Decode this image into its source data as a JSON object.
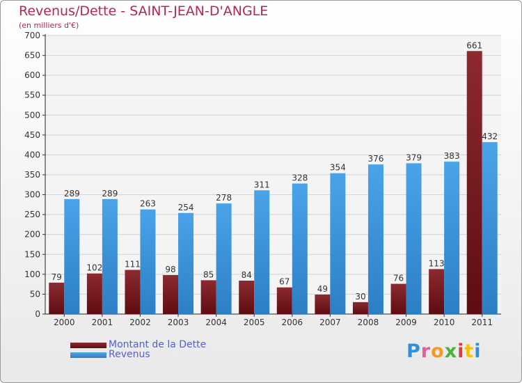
{
  "chart_data": {
    "type": "bar",
    "title": "Revenus/Dette - SAINT-JEAN-D'ANGLE",
    "subtitle": "(en milliers d'€)",
    "categories": [
      "2000",
      "2001",
      "2002",
      "2003",
      "2004",
      "2005",
      "2006",
      "2007",
      "2008",
      "2009",
      "2010",
      "2011"
    ],
    "series": [
      {
        "name": "Montant de la Dette",
        "color": "#7a1d22",
        "values": [
          79,
          102,
          111,
          98,
          85,
          84,
          67,
          49,
          30,
          76,
          113,
          661
        ]
      },
      {
        "name": "Revenus",
        "color": "#3b95dd",
        "values": [
          289,
          289,
          263,
          254,
          278,
          311,
          328,
          354,
          376,
          379,
          383,
          432
        ]
      }
    ],
    "yticks": [
      0,
      50,
      100,
      150,
      200,
      250,
      300,
      350,
      400,
      450,
      500,
      550,
      600,
      650,
      700
    ],
    "ylim": [
      0,
      700
    ],
    "grid": true,
    "legend_position": "bottom-left"
  },
  "logo": {
    "letters": [
      {
        "ch": "P",
        "color": "#2f8fd8"
      },
      {
        "ch": "r",
        "color": "#e85a9c"
      },
      {
        "ch": "o",
        "color": "#f39a1f"
      },
      {
        "ch": "x",
        "color": "#4caf3f"
      },
      {
        "ch": "i",
        "color": "#e13a3a"
      },
      {
        "ch": "t",
        "color": "#f4c20d"
      },
      {
        "ch": "i",
        "color": "#2f8fd8"
      }
    ]
  }
}
